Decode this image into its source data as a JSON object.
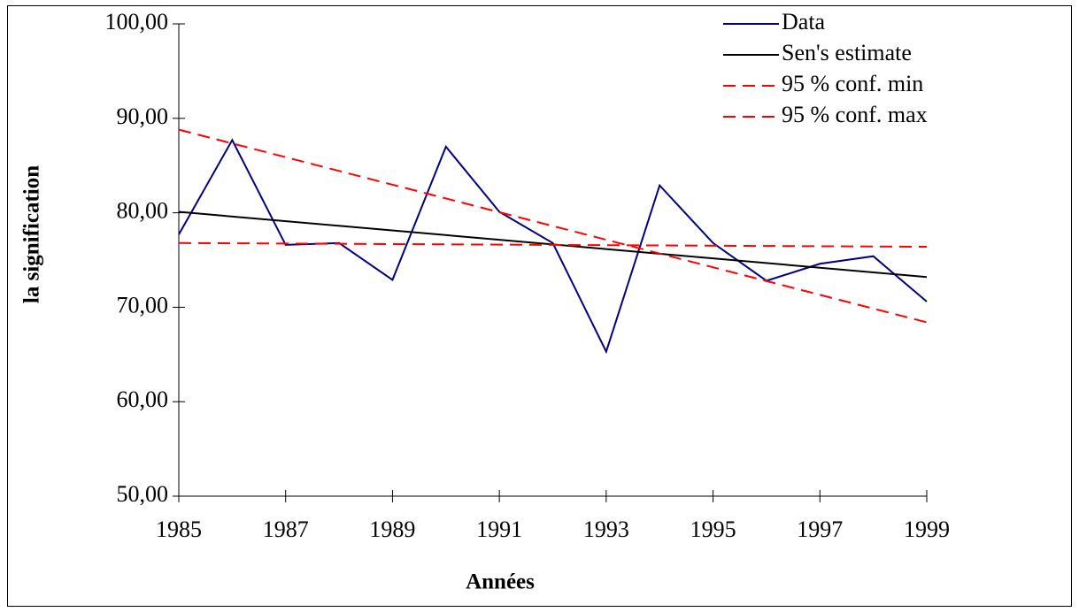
{
  "chart_data": {
    "type": "line",
    "x_label": "Années",
    "y_label": "la signification",
    "x": [
      1985,
      1986,
      1987,
      1988,
      1989,
      1990,
      1991,
      1992,
      1993,
      1994,
      1995,
      1996,
      1997,
      1998,
      1999
    ],
    "series": [
      {
        "name": "Data",
        "color": "#000080",
        "dash": false,
        "values": [
          77.7,
          87.7,
          76.6,
          76.8,
          72.9,
          87.0,
          80.1,
          76.8,
          65.3,
          82.9,
          76.8,
          72.8,
          74.6,
          75.4,
          70.6
        ]
      },
      {
        "name": "Sen's estimate",
        "color": "#000000",
        "dash": false,
        "x": [
          1985,
          1999
        ],
        "values": [
          80.1,
          73.2
        ]
      },
      {
        "name": "95 % conf. min",
        "color": "#ff0000",
        "dash": true,
        "x": [
          1985,
          1999
        ],
        "values": [
          76.8,
          76.4
        ]
      },
      {
        "name": "95 % conf. max",
        "color": "#ff0000",
        "dash": true,
        "x": [
          1985,
          1999
        ],
        "values": [
          88.8,
          68.4
        ]
      }
    ],
    "xlim": [
      1985,
      1999
    ],
    "xticks": [
      1985,
      1987,
      1989,
      1991,
      1993,
      1995,
      1997,
      1999
    ],
    "ylim": [
      50,
      100
    ],
    "yticks": [
      {
        "value": 50,
        "label": "50,00"
      },
      {
        "value": 60,
        "label": "60,00"
      },
      {
        "value": 70,
        "label": "70,00"
      },
      {
        "value": 80,
        "label": "80,00"
      },
      {
        "value": 90,
        "label": "90,00"
      },
      {
        "value": 100,
        "label": "100,00"
      }
    ],
    "legend": "top-right"
  }
}
